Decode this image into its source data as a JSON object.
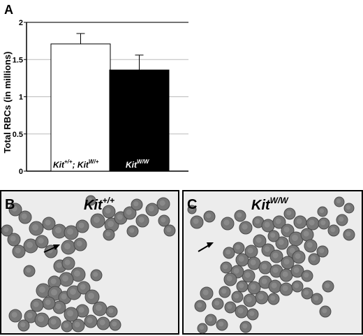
{
  "panels": {
    "a": {
      "letter": "A"
    },
    "b": {
      "letter": "B",
      "genotype_base": "Kit",
      "genotype_sup": "+/+"
    },
    "c": {
      "letter": "C",
      "genotype_base": "Kit",
      "genotype_sup": "W/W"
    }
  },
  "colors": {
    "bar_wt": "#ffffff",
    "bar_mutant": "#000000",
    "micrograph_bg": "#ececec",
    "cell": "#777777",
    "cell_edge": "#4a4a4a"
  },
  "chart_data": {
    "type": "bar",
    "ylabel": "Total RBCs (in millions)",
    "xlabel": "",
    "ylim": [
      0,
      2
    ],
    "yticks": [
      "0",
      "0.5",
      "1",
      "1.5",
      "2"
    ],
    "categories": [
      {
        "base": "Kit",
        "sup": "+/+",
        "sep": "; ",
        "base2": "Kit",
        "sup2": "W/+"
      },
      {
        "base": "Kit",
        "sup": "W/W"
      }
    ],
    "values": [
      1.71,
      1.36
    ],
    "errors": [
      0.14,
      0.2
    ],
    "grid": true
  }
}
